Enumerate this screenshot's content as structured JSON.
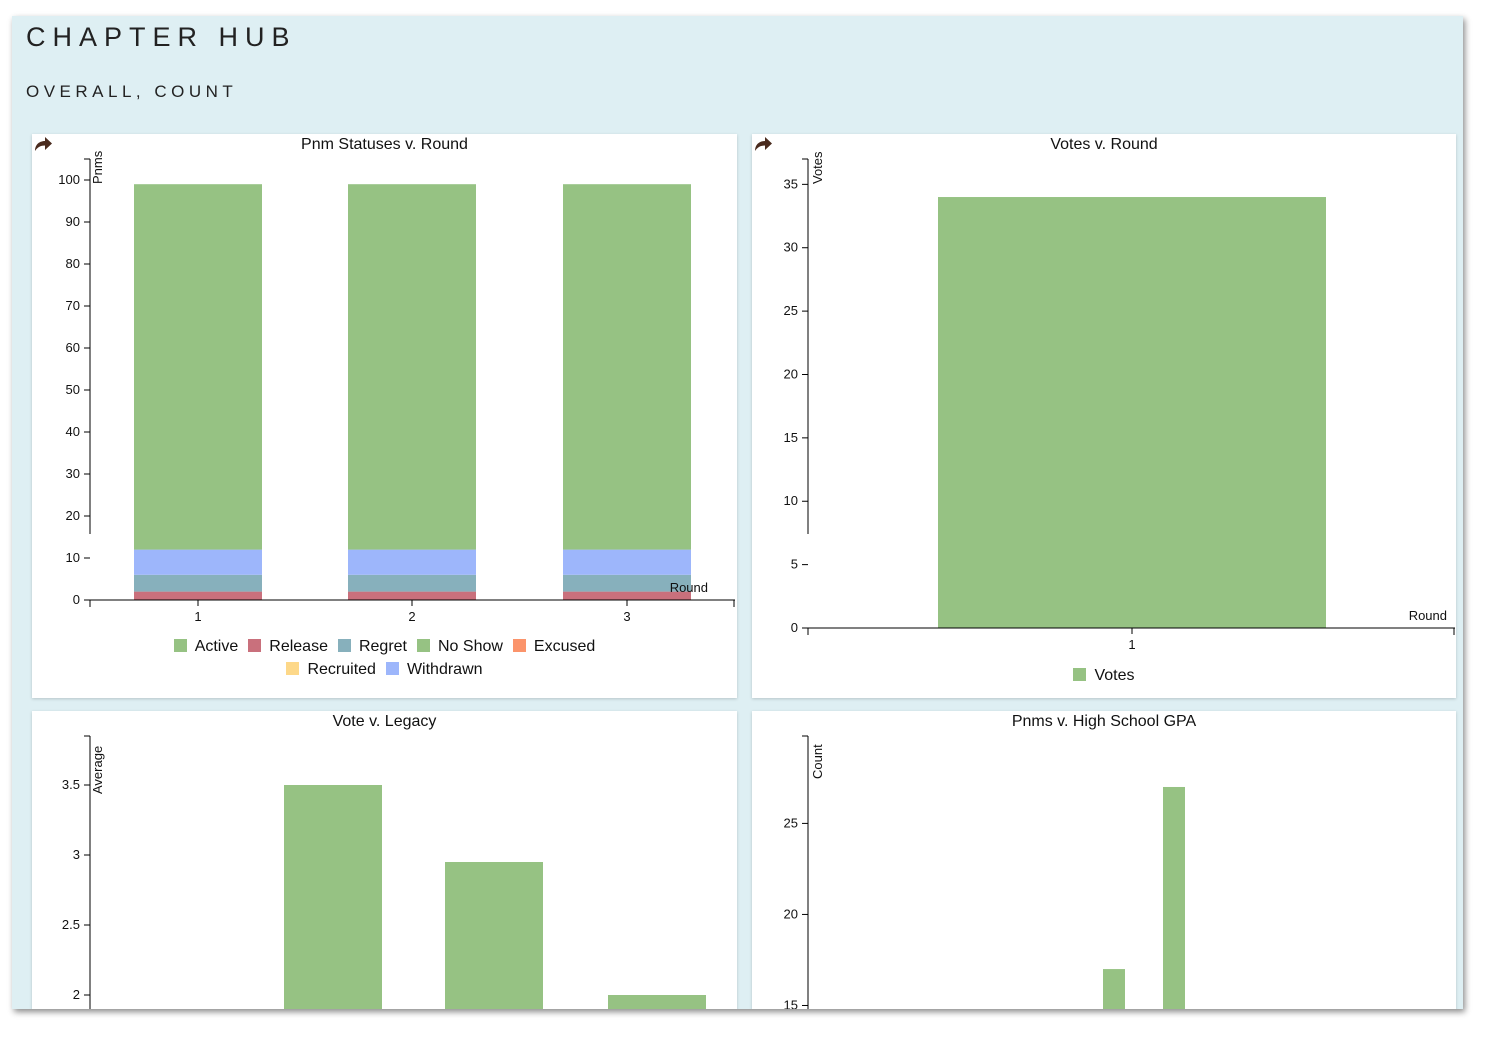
{
  "page": {
    "title": "CHAPTER HUB",
    "subtitle": "OVERALL, COUNT"
  },
  "charts": [
    {
      "id": "pnm-statuses",
      "title": "Pnm Statuses v. Round",
      "legend": [
        {
          "label": "Active",
          "color": "#96c283"
        },
        {
          "label": "Release",
          "color": "#c9707c"
        },
        {
          "label": "Regret",
          "color": "#87b0bc"
        },
        {
          "label": "No Show",
          "color": "#96c283"
        },
        {
          "label": "Excused",
          "color": "#fb946b"
        },
        {
          "label": "Recruited",
          "color": "#fdd889"
        },
        {
          "label": "Withdrawn",
          "color": "#9db6fb"
        }
      ]
    },
    {
      "id": "votes-round",
      "title": "Votes v. Round",
      "legend": [
        {
          "label": "Votes",
          "color": "#96c283"
        }
      ]
    },
    {
      "id": "vote-legacy",
      "title": "Vote v. Legacy",
      "legend": []
    },
    {
      "id": "pnms-gpa",
      "title": "Pnms v. High School GPA",
      "legend": []
    }
  ],
  "chart_data": [
    {
      "type": "bar",
      "stacked": true,
      "title": "Pnm Statuses v. Round",
      "xlabel": "Round",
      "ylabel": "Pnms",
      "categories": [
        "1",
        "2",
        "3"
      ],
      "ylim": [
        0,
        105
      ],
      "yticks": [
        "0",
        "10",
        "20",
        "30",
        "40",
        "50",
        "60",
        "70",
        "80",
        "90",
        "100"
      ],
      "series": [
        {
          "name": "Release",
          "color": "#c9707c",
          "values": [
            2,
            2,
            2
          ]
        },
        {
          "name": "Regret",
          "color": "#87b0bc",
          "values": [
            4,
            4,
            4
          ]
        },
        {
          "name": "No Show",
          "color": "#96c283",
          "values": [
            0,
            0,
            0
          ]
        },
        {
          "name": "Excused",
          "color": "#fb946b",
          "values": [
            0,
            0,
            0
          ]
        },
        {
          "name": "Recruited",
          "color": "#fdd889",
          "values": [
            0,
            0,
            0
          ]
        },
        {
          "name": "Withdrawn",
          "color": "#9db6fb",
          "values": [
            6,
            6,
            6
          ]
        },
        {
          "name": "Active",
          "color": "#96c283",
          "values": [
            87,
            87,
            87
          ]
        }
      ]
    },
    {
      "type": "bar",
      "title": "Votes v. Round",
      "xlabel": "Round",
      "ylabel": "Votes",
      "categories": [
        "1"
      ],
      "ylim": [
        0,
        37
      ],
      "yticks": [
        "0",
        "5",
        "10",
        "15",
        "20",
        "25",
        "30",
        "35"
      ],
      "series": [
        {
          "name": "Votes",
          "color": "#96c283",
          "values": [
            34
          ]
        }
      ]
    },
    {
      "type": "bar",
      "title": "Vote v. Legacy",
      "xlabel": "",
      "ylabel": "Average",
      "categories": [
        "",
        "",
        ""
      ],
      "ylim": [
        1.6,
        3.85
      ],
      "yticks": [
        "2",
        "2.5",
        "3",
        "3.5"
      ],
      "series": [
        {
          "color": "#96c283",
          "values": [
            3.5,
            2.95,
            2.0
          ]
        }
      ]
    },
    {
      "type": "bar",
      "title": "Pnms v. High School GPA",
      "xlabel": "",
      "ylabel": "Count",
      "categories": [
        "",
        ""
      ],
      "ylim": [
        12.5,
        29.8
      ],
      "yticks": [
        "15",
        "20",
        "25"
      ],
      "series": [
        {
          "color": "#96c283",
          "values": [
            17,
            27
          ]
        }
      ]
    }
  ]
}
